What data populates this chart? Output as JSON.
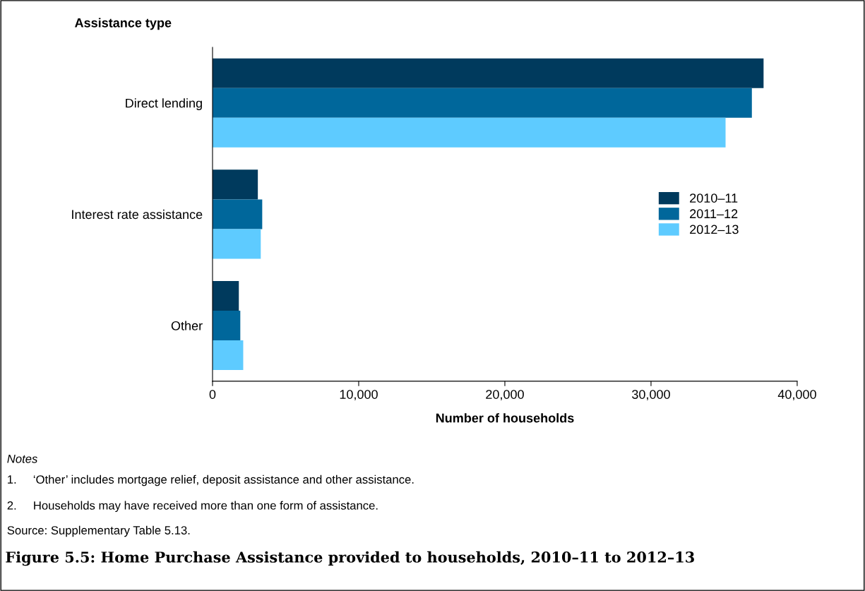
{
  "chart_data": {
    "type": "bar",
    "orientation": "horizontal",
    "title": "Figure 5.5: Home Purchase Assistance provided to households, 2010–11 to 2012–13",
    "xlabel": "Number of households",
    "ylabel": "Assistance type",
    "categories": [
      "Direct lending",
      "Interest rate assistance",
      "Other"
    ],
    "series": [
      {
        "name": "2010–11",
        "color": "#003a5d",
        "values": [
          37700,
          3100,
          1800
        ]
      },
      {
        "name": "2011–12",
        "color": "#00679b",
        "values": [
          36900,
          3400,
          1900
        ]
      },
      {
        "name": "2012–13",
        "color": "#5ecbff",
        "values": [
          35100,
          3300,
          2100
        ]
      }
    ],
    "xlim": [
      0,
      40000
    ],
    "xticks": [
      {
        "value": 0,
        "label": "0"
      },
      {
        "value": 10000,
        "label": "10,000"
      },
      {
        "value": 20000,
        "label": "20,000"
      },
      {
        "value": 30000,
        "label": "30,000"
      },
      {
        "value": 40000,
        "label": "40,000"
      }
    ],
    "legend": "right",
    "grid": false,
    "annotations": [
      "Notes",
      "1.     ‘Other’ includes mortgage relief, deposit assistance and other assistance.",
      "2.     Households may have received more than one form of assistance.",
      "Source: Supplementary Table 5.13."
    ]
  }
}
